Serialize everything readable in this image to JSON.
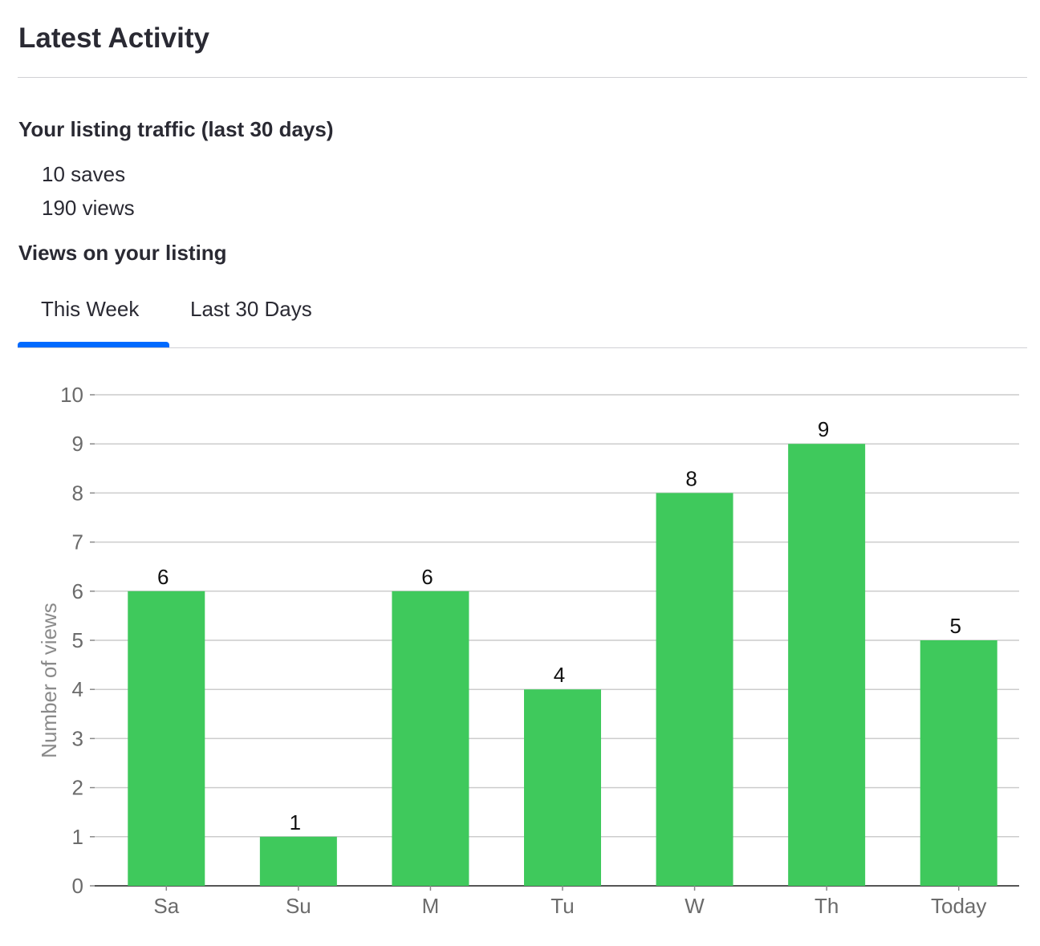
{
  "header": {
    "title": "Latest Activity"
  },
  "traffic": {
    "heading": "Your listing traffic (last 30 days)",
    "saves": "10 saves",
    "views": "190 views"
  },
  "views_section": {
    "heading": "Views on your listing",
    "tabs": [
      {
        "label": "This Week",
        "active": true
      },
      {
        "label": "Last 30 Days",
        "active": false
      }
    ]
  },
  "colors": {
    "bar": "#3fc95c",
    "tab_accent": "#006aff",
    "grid": "#cccccc",
    "axis_text": "#6b6b6b"
  },
  "chart_data": {
    "type": "bar",
    "categories": [
      "Sa",
      "Su",
      "M",
      "Tu",
      "W",
      "Th",
      "Today"
    ],
    "values": [
      6,
      1,
      6,
      4,
      8,
      9,
      5
    ],
    "data_labels": [
      "6",
      "1",
      "6",
      "4",
      "8",
      "9",
      "5"
    ],
    "ylabel": "Number of views",
    "xlabel": "",
    "ylim": [
      0,
      10
    ],
    "yticks": [
      "0",
      "1",
      "2",
      "3",
      "4",
      "5",
      "6",
      "7",
      "8",
      "9",
      "10"
    ],
    "grid": true,
    "legend": "none"
  }
}
